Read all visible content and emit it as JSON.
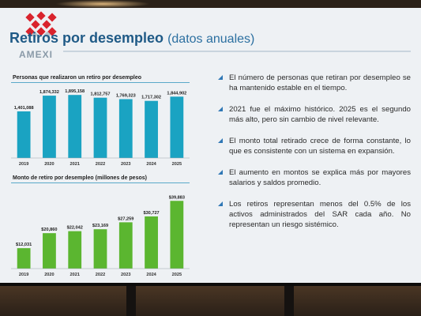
{
  "slide": {
    "title": "Retiros por desempleo",
    "subtitle": "(datos anuales)",
    "brand": "AMEXI"
  },
  "colors": {
    "bar1": "#1aa3c2",
    "bar2": "#5bb630",
    "accent": "#1f5a86"
  },
  "chart_data": [
    {
      "type": "bar",
      "title": "Personas que realizaron un retiro por desempleo",
      "categories": [
        "2019",
        "2020",
        "2021",
        "2022",
        "2023",
        "2024",
        "2025"
      ],
      "values": [
        1401088,
        1874332,
        1895158,
        1812757,
        1769323,
        1717302,
        1844902
      ],
      "labels": [
        "1,401,088",
        "1,874,332",
        "1,895,158",
        "1,812,757",
        "1,769,323",
        "1,717,302",
        "1,844,902"
      ],
      "ylim": [
        0,
        1900000
      ]
    },
    {
      "type": "bar",
      "title": "Monto de retiro por desempleo (millones de pesos)",
      "categories": [
        "2019",
        "2020",
        "2021",
        "2022",
        "2023",
        "2024",
        "2025"
      ],
      "values": [
        12031,
        20860,
        22042,
        23169,
        27259,
        30727,
        39883
      ],
      "labels": [
        "$12,031",
        "$20,860",
        "$22,042",
        "$23,169",
        "$27,259",
        "$30,727",
        "$39,883"
      ],
      "ylim": [
        0,
        40000
      ]
    }
  ],
  "bullets": [
    "El número de personas que retiran por desempleo se ha mantenido estable en el tiempo.",
    "2021 fue el máximo histórico. 2025 es el segundo más alto, pero sin cambio de nivel relevante.",
    "El monto total retirado crece de forma constante, lo que es consistente con un sistema en expansión.",
    "El aumento en montos se explica más por mayores salarios y saldos promedio.",
    "Los retiros representan menos del 0.5% de los activos administrados del SAR cada año. No representan un riesgo sistémico."
  ]
}
